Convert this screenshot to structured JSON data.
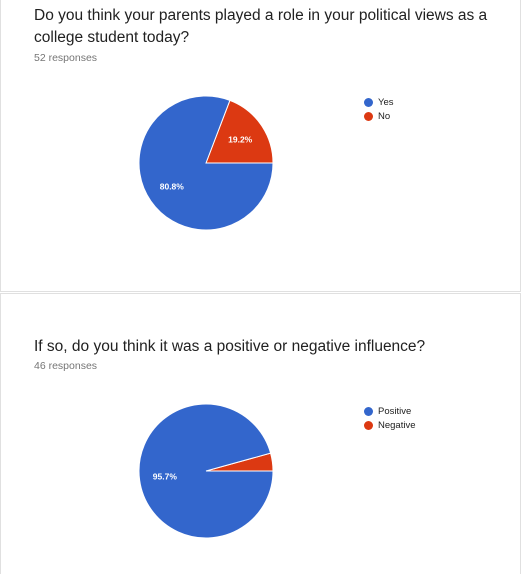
{
  "colors": {
    "blue": "#3366cc",
    "red": "#dc3912"
  },
  "questions": [
    {
      "title": "Do you think your parents played a role in your political views as a college student today?",
      "responses": "52 responses"
    },
    {
      "title": "If so, do you think it was a positive or negative influence?",
      "responses": "46 responses"
    }
  ],
  "chart_data": [
    {
      "type": "pie",
      "title": "Do you think your parents played a role in your political views as a college student today?",
      "labels": [
        "Yes",
        "No"
      ],
      "values": [
        80.8,
        19.2
      ],
      "value_labels": [
        "80.8%",
        "19.2%"
      ],
      "colors": [
        "#3366cc",
        "#dc3912"
      ],
      "legend": "right"
    },
    {
      "type": "pie",
      "title": "If so, do you think it was a positive or negative influence?",
      "labels": [
        "Positive",
        "Negative"
      ],
      "values": [
        95.7,
        4.3
      ],
      "value_labels": [
        "95.7%",
        ""
      ],
      "colors": [
        "#3366cc",
        "#dc3912"
      ],
      "legend": "right"
    }
  ]
}
